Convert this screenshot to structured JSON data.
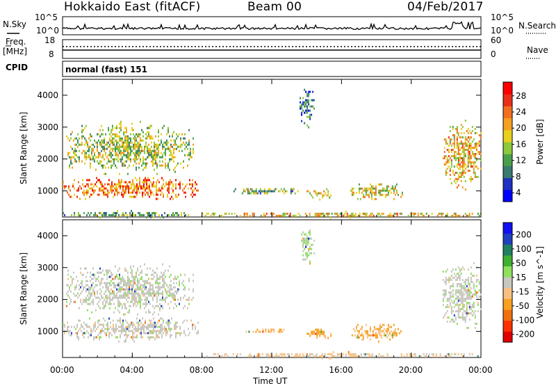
{
  "header": {
    "title": "Hokkaido East (fitACF)",
    "beam": "Beam 00",
    "date": "04/Feb/2017"
  },
  "top_panel": {
    "left_label": "N.Sky",
    "left_ticks": [
      "10^5",
      "10^0"
    ],
    "right_ticks": [
      "10^5",
      "10^0"
    ],
    "right_label": "N.Search",
    "freq_label_1": "Freq.",
    "freq_label_2": "[MHz]",
    "freq_ticks": [
      "18",
      "8"
    ],
    "nave_ticks": [
      "60",
      "0"
    ],
    "nave_label": "Nave",
    "cpid_label": "CPID",
    "cpid_value": "normal (fast) 151"
  },
  "chart_data": [
    {
      "type": "heatmap",
      "name": "power",
      "xlabel": "Time UT",
      "ylabel": "Slant Range [km]",
      "x_ticks": [
        "00:00",
        "04:00",
        "08:00",
        "12:00",
        "16:00",
        "20:00",
        "00:00"
      ],
      "xlim": [
        0,
        24
      ],
      "ylim": [
        180,
        4500
      ],
      "y_ticks": [
        1000,
        2000,
        3000,
        4000
      ],
      "colorbar_label": "Power [dB]",
      "colorbar_ticks": [
        "28",
        "24",
        "20",
        "16",
        "12",
        "8",
        "4"
      ],
      "colorbar_range": [
        0,
        30
      ],
      "colorbar_colors": [
        "#0000ff",
        "#2030c0",
        "#3a7a70",
        "#4aa04a",
        "#8ec83c",
        "#e8d020",
        "#f4a020",
        "#f07020",
        "#e83018",
        "#ff0000"
      ],
      "echo_regions": [
        {
          "t": [
            0.0,
            7.8
          ],
          "r": [
            700,
            1500
          ],
          "level": 22
        },
        {
          "t": [
            0.2,
            7.5
          ],
          "r": [
            1500,
            3200
          ],
          "level": 14
        },
        {
          "t": [
            0.0,
            7.5
          ],
          "r": [
            180,
            400
          ],
          "level": 12
        },
        {
          "t": [
            8.0,
            24.0
          ],
          "r": [
            180,
            380
          ],
          "level": 18
        },
        {
          "t": [
            9.8,
            13.5
          ],
          "r": [
            900,
            1150
          ],
          "level": 12
        },
        {
          "t": [
            14.0,
            15.4
          ],
          "r": [
            750,
            1150
          ],
          "level": 16
        },
        {
          "t": [
            16.5,
            19.5
          ],
          "r": [
            700,
            1300
          ],
          "level": 16
        },
        {
          "t": [
            21.8,
            24.0
          ],
          "r": [
            1000,
            3300
          ],
          "level": 18
        },
        {
          "t": [
            13.6,
            14.4
          ],
          "r": [
            3000,
            4400
          ],
          "level": 8
        }
      ]
    },
    {
      "type": "heatmap",
      "name": "velocity",
      "xlabel": "Time UT",
      "ylabel": "Slant Range [km]",
      "x_ticks": [
        "00:00",
        "04:00",
        "08:00",
        "12:00",
        "16:00",
        "20:00",
        "00:00"
      ],
      "xlim": [
        0,
        24
      ],
      "ylim": [
        180,
        4500
      ],
      "y_ticks": [
        1000,
        2000,
        3000,
        4000
      ],
      "colorbar_label": "Velocity [m s^-1]",
      "colorbar_ticks": [
        "200",
        "100",
        "50",
        "15",
        "-15",
        "-50",
        "-100",
        "-200"
      ],
      "colorbar_range": [
        -250,
        250
      ],
      "colorbar_colors": [
        "#e00000",
        "#ff3000",
        "#f07010",
        "#f8a020",
        "#f8c080",
        "#c8c8c0",
        "#90e060",
        "#40b030",
        "#208060",
        "#2040c0",
        "#1010f0"
      ],
      "echo_regions": [
        {
          "t": [
            0.0,
            7.8
          ],
          "r": [
            700,
            1500
          ],
          "v": 0
        },
        {
          "t": [
            0.2,
            7.5
          ],
          "r": [
            1500,
            3200
          ],
          "v": 5
        },
        {
          "t": [
            8.0,
            24.0
          ],
          "r": [
            180,
            380
          ],
          "v": -30
        },
        {
          "t": [
            10.5,
            13.0
          ],
          "r": [
            950,
            1150
          ],
          "v": -60
        },
        {
          "t": [
            14.0,
            15.4
          ],
          "r": [
            750,
            1150
          ],
          "v": -80
        },
        {
          "t": [
            16.5,
            19.5
          ],
          "r": [
            700,
            1300
          ],
          "v": -70
        },
        {
          "t": [
            21.8,
            24.0
          ],
          "r": [
            1000,
            3300
          ],
          "v": 5
        },
        {
          "t": [
            13.6,
            14.4
          ],
          "r": [
            3000,
            4400
          ],
          "v": 30
        }
      ]
    }
  ]
}
